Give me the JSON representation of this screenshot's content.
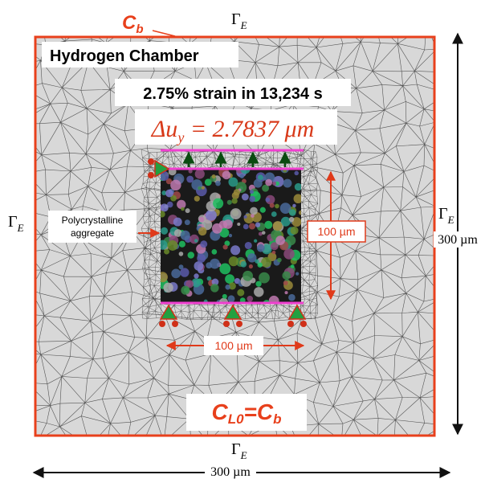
{
  "boundary_label": {
    "main": "C",
    "sub": "b"
  },
  "gamma_labels": [
    {
      "symbol": "Γ",
      "sub": "E"
    },
    {
      "symbol": "Γ",
      "sub": "E"
    },
    {
      "symbol": "Γ",
      "sub": "E"
    },
    {
      "symbol": "Γ",
      "sub": "E"
    }
  ],
  "chamber_title": "Hydrogen Chamber",
  "strain_text": "2.75% strain in 13,234 s",
  "displacement": {
    "main": "Δu",
    "sub": "y",
    "rest": " = 2.7837  μm"
  },
  "aggregate_label": [
    "Polycrystalline",
    "aggregate"
  ],
  "dimensions": [
    "100 µm",
    "100 µm",
    "300 µm",
    "300 µm"
  ],
  "initial_condition": {
    "main": "C",
    "sub": "L0",
    "eq": "=C",
    "sub2": "b"
  }
}
